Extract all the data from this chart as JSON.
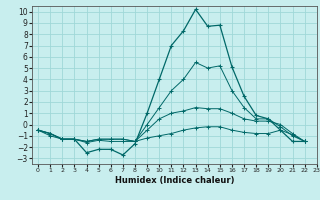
{
  "title": "",
  "xlabel": "Humidex (Indice chaleur)",
  "ylabel": "",
  "xlim": [
    -0.5,
    23
  ],
  "ylim": [
    -3.5,
    10.5
  ],
  "xticks": [
    0,
    1,
    2,
    3,
    4,
    5,
    6,
    7,
    8,
    9,
    10,
    11,
    12,
    13,
    14,
    15,
    16,
    17,
    18,
    19,
    20,
    21,
    22,
    23
  ],
  "yticks": [
    -3,
    -2,
    -1,
    0,
    1,
    2,
    3,
    4,
    5,
    6,
    7,
    8,
    9,
    10
  ],
  "background_color": "#c8eeee",
  "grid_color": "#a0d8d8",
  "line_color": "#006868",
  "lines": [
    [
      -0.5,
      -0.8,
      -1.3,
      -1.3,
      -2.5,
      -2.2,
      -2.2,
      -2.7,
      -1.7,
      1.0,
      4.0,
      7.0,
      8.3,
      10.2,
      8.7,
      8.8,
      5.1,
      2.5,
      0.8,
      0.5,
      -0.5,
      -1.5,
      -1.5
    ],
    [
      -0.5,
      -1.0,
      -1.3,
      -1.3,
      -1.6,
      -1.4,
      -1.5,
      -1.5,
      -1.5,
      -1.2,
      -1.0,
      -0.8,
      -0.5,
      -0.3,
      -0.2,
      -0.2,
      -0.5,
      -0.7,
      -0.8,
      -0.8,
      -0.5,
      -0.9,
      -1.5
    ],
    [
      -0.5,
      -0.8,
      -1.3,
      -1.3,
      -1.5,
      -1.3,
      -1.3,
      -1.3,
      -1.5,
      -0.5,
      0.5,
      1.0,
      1.2,
      1.5,
      1.4,
      1.4,
      1.0,
      0.5,
      0.3,
      0.3,
      0.0,
      -0.8,
      -1.5
    ],
    [
      -0.5,
      -0.8,
      -1.3,
      -1.3,
      -1.5,
      -1.3,
      -1.3,
      -1.3,
      -1.5,
      0.0,
      1.5,
      3.0,
      4.0,
      5.5,
      5.0,
      5.2,
      3.0,
      1.5,
      0.5,
      0.5,
      -0.2,
      -1.0,
      -1.5
    ]
  ]
}
